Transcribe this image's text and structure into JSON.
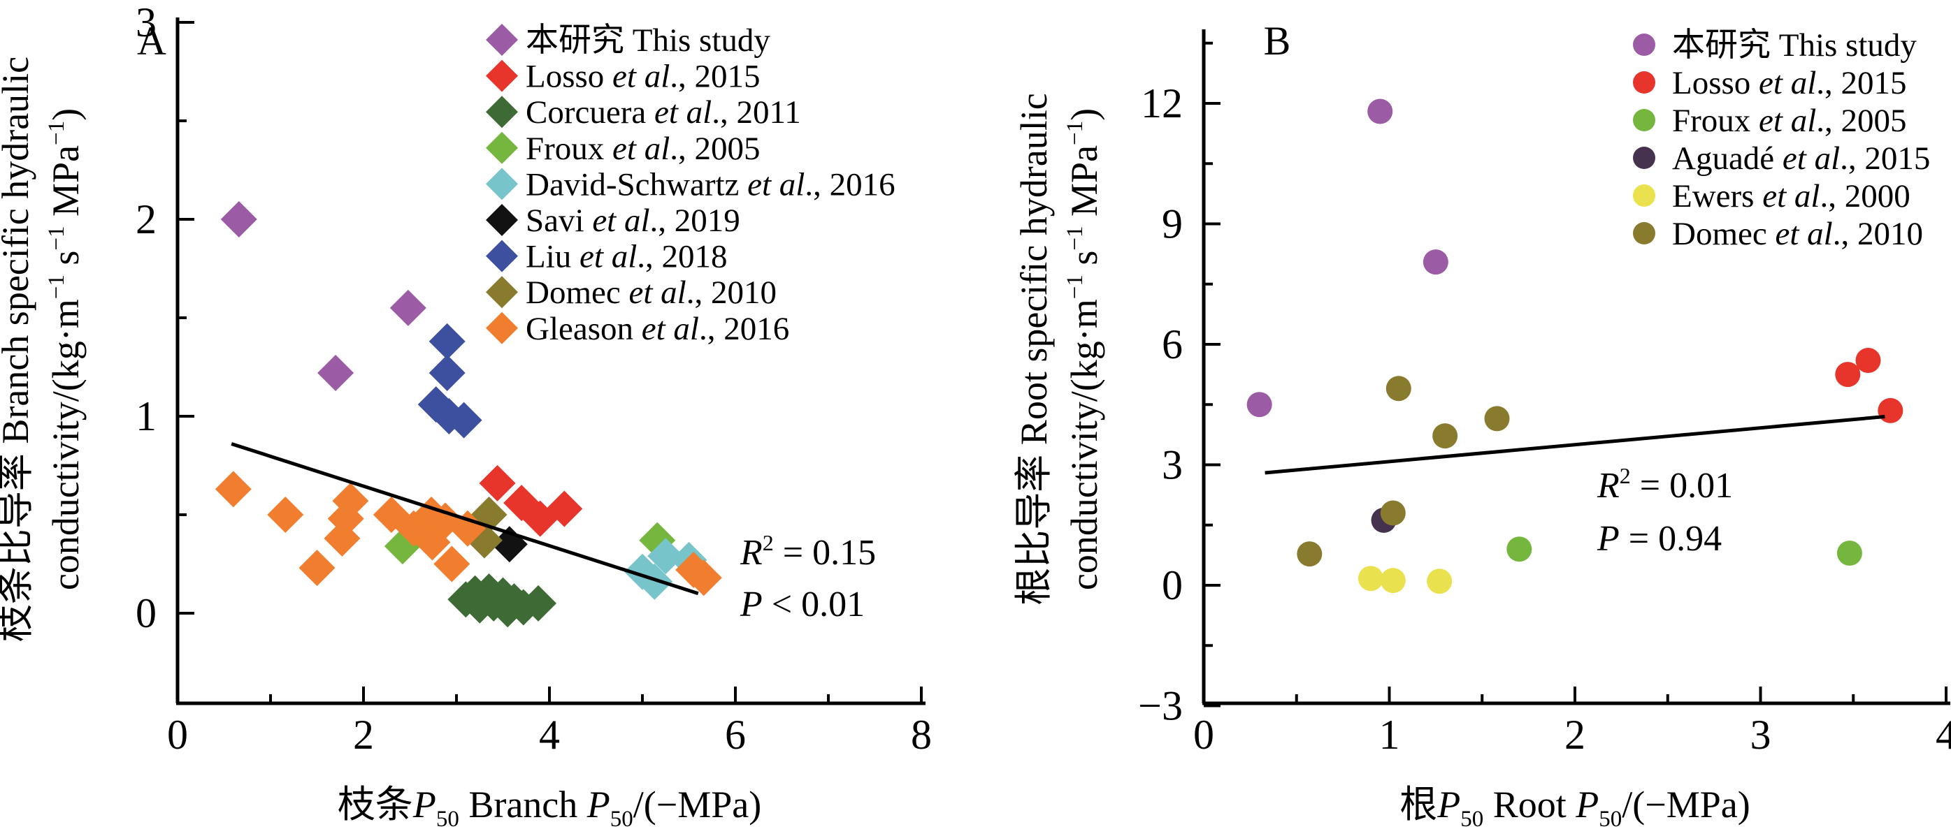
{
  "figure": {
    "background": "#ffffff"
  },
  "chart_data": [
    {
      "type": "scatter",
      "panel_label": "A",
      "marker": "diamond",
      "xlabel_parts": [
        {
          "t": "枝条"
        },
        {
          "t": "P",
          "i": 1
        },
        {
          "t": "50",
          "sub": 1
        },
        {
          "t": "  Branch "
        },
        {
          "t": "P",
          "i": 1
        },
        {
          "t": "50",
          "sub": 1
        },
        {
          "t": "/(−MPa)"
        }
      ],
      "ylabel_line1": "枝条比导率  Branch specific hydraulic",
      "ylabel_line2_parts": [
        {
          "t": "conductivity/(kg·m"
        },
        {
          "t": "−1",
          "sup": 1
        },
        {
          "t": " s"
        },
        {
          "t": "−1",
          "sup": 1
        },
        {
          "t": " MPa"
        },
        {
          "t": "−1",
          "sup": 1
        },
        {
          "t": ")"
        }
      ],
      "xlim": [
        0,
        8
      ],
      "ylim": [
        -0.5,
        3.05
      ],
      "x_major_ticks": [
        0,
        2,
        4,
        6,
        8
      ],
      "x_minor_ticks": [
        1,
        3,
        5,
        7
      ],
      "y_major_ticks": [
        0,
        1,
        2,
        3
      ],
      "y_minor_ticks": [
        0.5,
        1.5,
        2.5
      ],
      "grid": false,
      "legend_position": "top-right-inside",
      "series": [
        {
          "name": "本研究 This study",
          "color": "#9B5BA5",
          "points": [
            [
              0.66,
              2.0
            ],
            [
              1.7,
              1.22
            ],
            [
              2.48,
              1.55
            ]
          ]
        },
        {
          "name": "Losso et al., 2015",
          "color": "#E8352B",
          "points": [
            [
              3.44,
              0.66
            ],
            [
              3.7,
              0.56
            ],
            [
              3.9,
              0.48
            ],
            [
              4.16,
              0.53
            ]
          ]
        },
        {
          "name": "Corcuera et al., 2011",
          "color": "#3E6B35",
          "points": [
            [
              3.1,
              0.07
            ],
            [
              3.2,
              0.1
            ],
            [
              3.25,
              0.04
            ],
            [
              3.35,
              0.11
            ],
            [
              3.4,
              0.05
            ],
            [
              3.5,
              0.09
            ],
            [
              3.55,
              0.02
            ],
            [
              3.62,
              0.06
            ],
            [
              3.72,
              0.03
            ],
            [
              3.88,
              0.05
            ]
          ]
        },
        {
          "name": "Froux et al., 2005",
          "color": "#74B63E",
          "points": [
            [
              2.42,
              0.34
            ],
            [
              5.16,
              0.37
            ]
          ]
        },
        {
          "name": "David-Schwartz et al., 2016",
          "color": "#77C4CA",
          "points": [
            [
              5.0,
              0.21
            ],
            [
              5.13,
              0.16
            ],
            [
              5.25,
              0.29
            ],
            [
              5.5,
              0.27
            ]
          ]
        },
        {
          "name": "Savi et al., 2019",
          "color": "#121212",
          "points": [
            [
              3.57,
              0.35
            ]
          ]
        },
        {
          "name": "Liu et al., 2018",
          "color": "#3D4F9F",
          "points": [
            [
              2.9,
              1.38
            ],
            [
              2.9,
              1.22
            ],
            [
              2.78,
              1.06
            ],
            [
              2.92,
              1.0
            ],
            [
              3.08,
              0.98
            ]
          ]
        },
        {
          "name": "Domec et al., 2010",
          "color": "#897B2E",
          "points": [
            [
              3.35,
              0.5
            ],
            [
              3.3,
              0.37
            ]
          ]
        },
        {
          "name": "Gleason et al., 2016",
          "color": "#F07E2E",
          "points": [
            [
              0.6,
              0.63
            ],
            [
              1.16,
              0.5
            ],
            [
              1.5,
              0.23
            ],
            [
              1.77,
              0.38
            ],
            [
              1.81,
              0.48
            ],
            [
              1.86,
              0.57
            ],
            [
              2.3,
              0.5
            ],
            [
              2.54,
              0.43
            ],
            [
              2.73,
              0.5
            ],
            [
              2.74,
              0.36
            ],
            [
              2.88,
              0.47
            ],
            [
              2.95,
              0.25
            ],
            [
              3.12,
              0.43
            ],
            [
              5.55,
              0.22
            ],
            [
              5.66,
              0.18
            ]
          ]
        }
      ],
      "regression_line": {
        "x1": 0.58,
        "y1": 0.86,
        "x2": 5.6,
        "y2": 0.1
      },
      "stats": {
        "line1_parts": [
          {
            "t": "R",
            "i": 1
          },
          {
            "t": "2",
            "sup": 1
          },
          {
            "t": " = 0.15"
          }
        ],
        "line2_parts": [
          {
            "t": "P",
            "i": 1
          },
          {
            "t": " < 0.01"
          }
        ]
      },
      "legend": [
        {
          "pre": "本研究  This study",
          "it": "",
          "post": "",
          "color": "#9B5BA5"
        },
        {
          "pre": "Losso ",
          "it": "et al",
          "post": "., 2015",
          "color": "#E8352B"
        },
        {
          "pre": "Corcuera ",
          "it": "et al",
          "post": "., 2011",
          "color": "#3E6B35"
        },
        {
          "pre": "Froux ",
          "it": "et al",
          "post": "., 2005",
          "color": "#74B63E"
        },
        {
          "pre": "David-Schwartz ",
          "it": "et al",
          "post": "., 2016",
          "color": "#77C4CA"
        },
        {
          "pre": "Savi ",
          "it": "et al",
          "post": "., 2019",
          "color": "#121212"
        },
        {
          "pre": "Liu ",
          "it": "et al",
          "post": "., 2018",
          "color": "#3D4F9F"
        },
        {
          "pre": "Domec ",
          "it": "et al",
          "post": "., 2010",
          "color": "#897B2E"
        },
        {
          "pre": "Gleason ",
          "it": "et al",
          "post": "., 2016",
          "color": "#F07E2E"
        }
      ]
    },
    {
      "type": "scatter",
      "panel_label": "B",
      "marker": "circle",
      "xlabel_parts": [
        {
          "t": "根"
        },
        {
          "t": "P",
          "i": 1
        },
        {
          "t": "50",
          "sub": 1
        },
        {
          "t": "  Root "
        },
        {
          "t": "P",
          "i": 1
        },
        {
          "t": "50",
          "sub": 1
        },
        {
          "t": "/(−MPa)"
        }
      ],
      "ylabel_line1": "根比导率  Root specific hydraulic",
      "ylabel_line2_parts": [
        {
          "t": "conductivity/(kg·m"
        },
        {
          "t": "−1",
          "sup": 1
        },
        {
          "t": " s"
        },
        {
          "t": "−1",
          "sup": 1
        },
        {
          "t": " MPa"
        },
        {
          "t": "−1",
          "sup": 1
        },
        {
          "t": ")"
        }
      ],
      "xlim": [
        0,
        4
      ],
      "ylim": [
        -3,
        13.8
      ],
      "x_major_ticks": [
        0,
        1,
        2,
        3,
        4
      ],
      "x_minor_ticks": [
        0.5,
        1.5,
        2.5,
        3.5
      ],
      "y_major_ticks": [
        -3,
        0,
        3,
        6,
        9,
        12
      ],
      "y_minor_ticks": [
        -1.5,
        1.5,
        4.5,
        7.5,
        10.5,
        13.5
      ],
      "grid": false,
      "legend_position": "top-right-inside",
      "series": [
        {
          "name": "本研究 This study",
          "color": "#9B5BA5",
          "points": [
            [
              0.3,
              4.5
            ],
            [
              0.95,
              11.8
            ],
            [
              1.25,
              8.05
            ]
          ]
        },
        {
          "name": "Losso et al., 2015",
          "color": "#E8352B",
          "points": [
            [
              3.47,
              5.25
            ],
            [
              3.58,
              5.6
            ],
            [
              3.7,
              4.35
            ]
          ]
        },
        {
          "name": "Froux et al., 2005",
          "color": "#74B63E",
          "points": [
            [
              1.7,
              0.9
            ],
            [
              3.48,
              0.8
            ]
          ]
        },
        {
          "name": "Aguadé et al., 2015",
          "color": "#45324F",
          "points": [
            [
              0.97,
              1.62
            ]
          ]
        },
        {
          "name": "Ewers et al., 2000",
          "color": "#E9E24E",
          "points": [
            [
              0.9,
              0.17
            ],
            [
              1.02,
              0.12
            ],
            [
              1.27,
              0.1
            ]
          ]
        },
        {
          "name": "Domec et al., 2010",
          "color": "#897B2E",
          "points": [
            [
              0.57,
              0.78
            ],
            [
              1.02,
              1.8
            ],
            [
              1.05,
              4.9
            ],
            [
              1.3,
              3.72
            ],
            [
              1.58,
              4.15
            ]
          ]
        }
      ],
      "regression_line": {
        "x1": 0.33,
        "y1": 2.8,
        "x2": 3.67,
        "y2": 4.2
      },
      "stats": {
        "line1_parts": [
          {
            "t": "R",
            "i": 1
          },
          {
            "t": "2",
            "sup": 1
          },
          {
            "t": " = 0.01"
          }
        ],
        "line2_parts": [
          {
            "t": "P",
            "i": 1
          },
          {
            "t": " = 0.94"
          }
        ]
      },
      "legend": [
        {
          "pre": "本研究  This study",
          "it": "",
          "post": "",
          "color": "#9B5BA5"
        },
        {
          "pre": "Losso ",
          "it": "et al",
          "post": "., 2015",
          "color": "#E8352B"
        },
        {
          "pre": "Froux ",
          "it": "et al",
          "post": "., 2005",
          "color": "#74B63E"
        },
        {
          "pre": "Aguadé ",
          "it": "et al",
          "post": "., 2015",
          "color": "#45324F"
        },
        {
          "pre": "Ewers ",
          "it": "et al",
          "post": "., 2000",
          "color": "#E9E24E"
        },
        {
          "pre": "Domec ",
          "it": "et al",
          "post": "., 2010",
          "color": "#897B2E"
        }
      ]
    }
  ]
}
